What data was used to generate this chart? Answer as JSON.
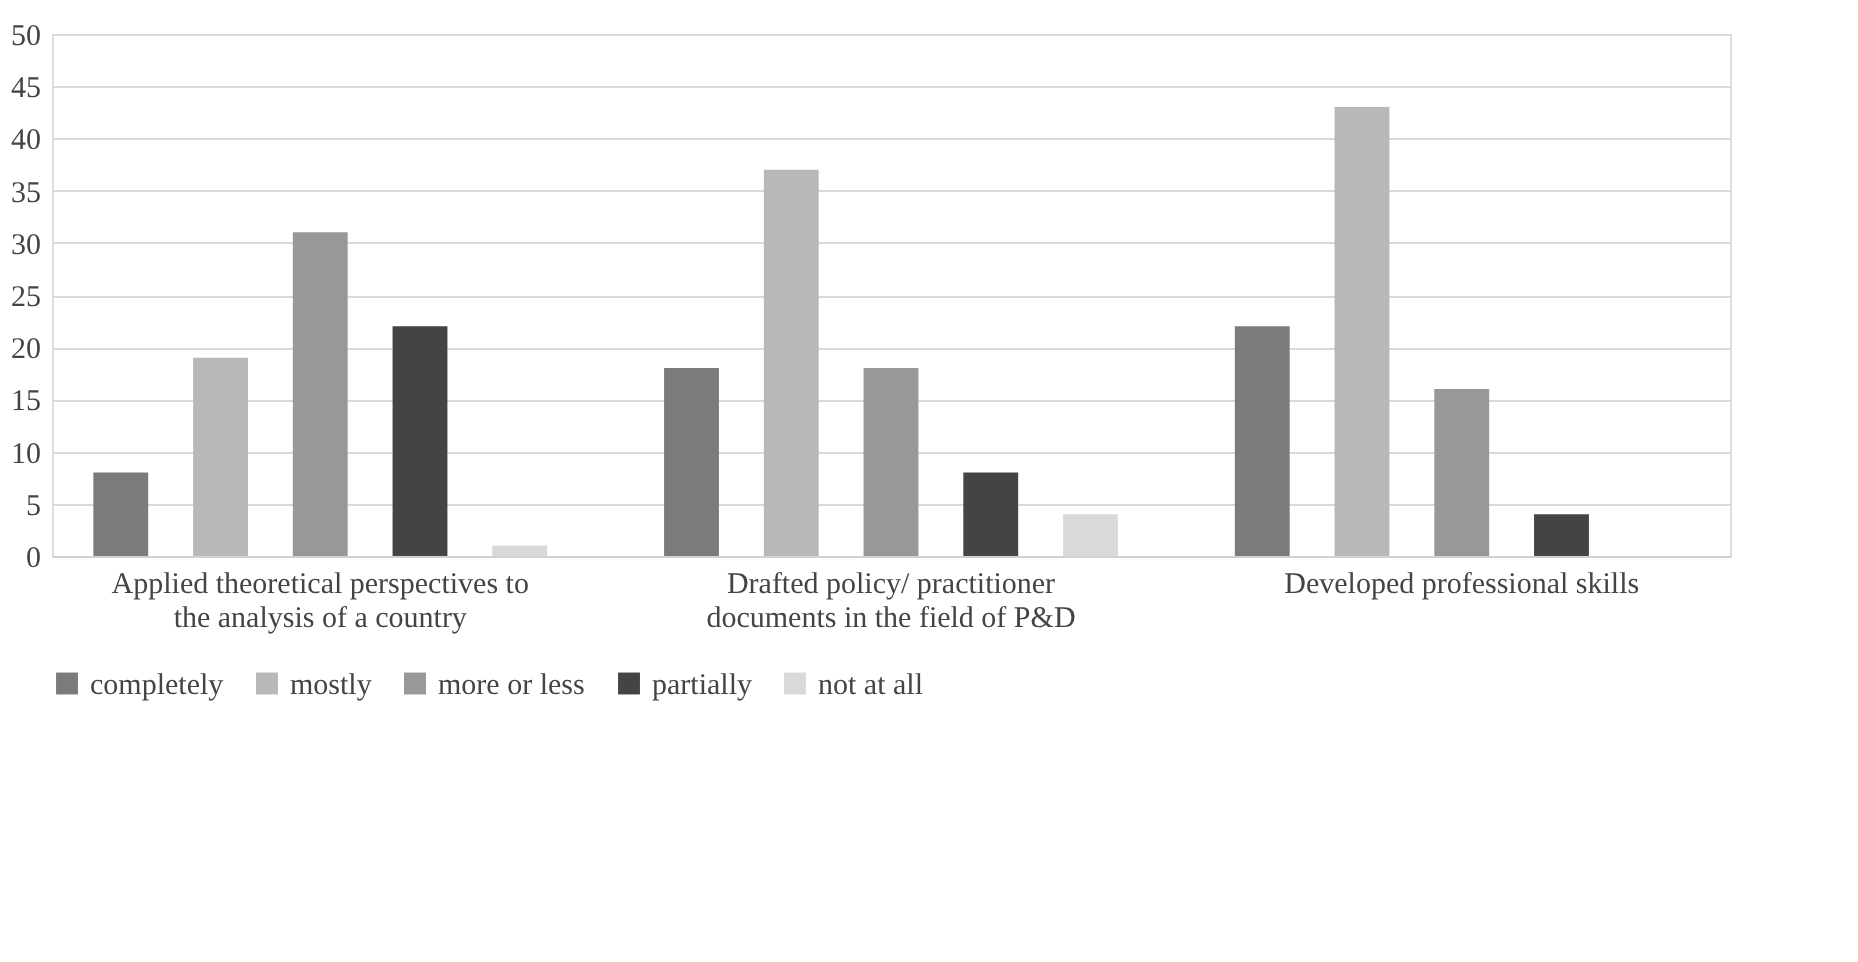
{
  "chart_data": {
    "type": "bar",
    "categories": [
      "Applied theoretical perspectives to the analysis of a country",
      "Drafted policy/ practitioner documents in the field of P&D",
      "Developed professional skills"
    ],
    "series": [
      {
        "name": "completely",
        "color": "#7b7b7d",
        "values": [
          8,
          18,
          22
        ]
      },
      {
        "name": "mostly",
        "color": "#b8b8ba",
        "values": [
          19,
          37,
          43
        ]
      },
      {
        "name": "more or less",
        "color": "#98989a",
        "values": [
          31,
          18,
          16
        ]
      },
      {
        "name": "partially",
        "color": "#444446",
        "values": [
          22,
          8,
          4
        ]
      },
      {
        "name": "not at all",
        "color": "#d9d9d9",
        "values": [
          1,
          4,
          0
        ]
      }
    ],
    "ylim": [
      0,
      50
    ],
    "yticks": [
      0,
      5,
      10,
      15,
      20,
      25,
      30,
      35,
      40,
      45,
      50
    ],
    "grid": "y",
    "legend": "bottom"
  }
}
